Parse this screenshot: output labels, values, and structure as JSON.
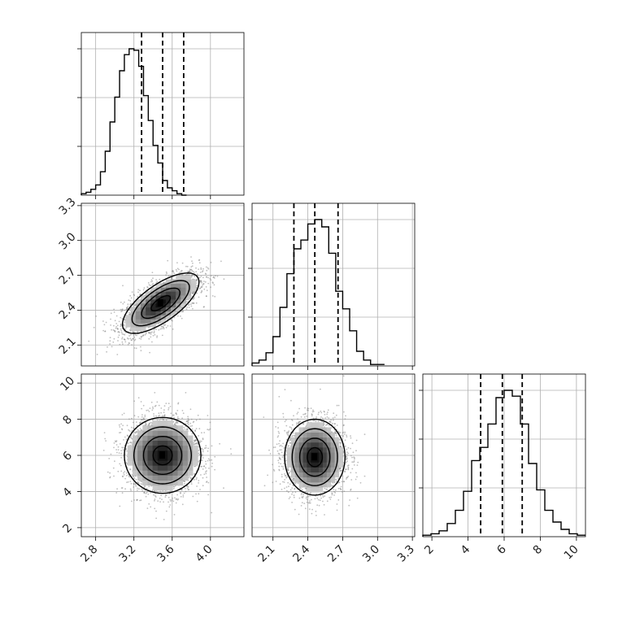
{
  "chart_data": [
    {
      "type": "histogram",
      "panel": "p1-marginal",
      "variable": "p1",
      "bin_edges_start": 2.65,
      "bin_width": 0.05,
      "relative_counts": [
        0.01,
        0.02,
        0.04,
        0.07,
        0.16,
        0.3,
        0.5,
        0.67,
        0.85,
        0.96,
        1.0,
        0.99,
        0.88,
        0.68,
        0.51,
        0.34,
        0.22,
        0.1,
        0.05,
        0.03,
        0.01,
        0.0
      ],
      "quantile_lines": [
        3.28,
        3.5,
        3.72
      ],
      "xlim": [
        2.65,
        4.35
      ]
    },
    {
      "type": "histogram",
      "panel": "p2-marginal",
      "variable": "p2",
      "bin_edges_start": 1.92,
      "bin_width": 0.06,
      "relative_counts": [
        0.02,
        0.04,
        0.09,
        0.2,
        0.4,
        0.63,
        0.8,
        0.86,
        0.97,
        1.0,
        0.95,
        0.77,
        0.51,
        0.39,
        0.24,
        0.1,
        0.04,
        0.01,
        0.01
      ],
      "quantile_lines": [
        2.28,
        2.46,
        2.66
      ],
      "xlim": [
        1.92,
        3.32
      ]
    },
    {
      "type": "histogram",
      "panel": "p3-marginal",
      "variable": "p3",
      "bin_edges_start": 1.5,
      "bin_width": 0.45,
      "relative_counts": [
        0.01,
        0.02,
        0.04,
        0.09,
        0.18,
        0.31,
        0.52,
        0.61,
        0.77,
        0.95,
        1.0,
        0.96,
        0.77,
        0.5,
        0.32,
        0.18,
        0.1,
        0.05,
        0.02,
        0.01
      ],
      "quantile_lines": [
        4.7,
        5.9,
        7.0
      ],
      "xlim": [
        1.5,
        10.5
      ]
    },
    {
      "type": "scatter-density",
      "panel": "p1-vs-p2",
      "x_variable": "p1",
      "y_variable": "p2",
      "center": [
        3.48,
        2.46
      ],
      "spread": [
        0.2,
        0.13
      ],
      "correlation": 0.7,
      "contour_sigma_levels": [
        0.5,
        1.0,
        1.5,
        2.0
      ]
    },
    {
      "type": "scatter-density",
      "panel": "p1-vs-p3",
      "x_variable": "p1",
      "y_variable": "p3",
      "center": [
        3.5,
        6.0
      ],
      "spread": [
        0.2,
        1.05
      ],
      "correlation": 0.0,
      "contour_sigma_levels": [
        0.5,
        1.0,
        1.5,
        2.0
      ]
    },
    {
      "type": "scatter-density",
      "panel": "p2-vs-p3",
      "x_variable": "p2",
      "y_variable": "p3",
      "center": [
        2.46,
        5.9
      ],
      "spread": [
        0.13,
        1.05
      ],
      "correlation": 0.0,
      "contour_sigma_levels": [
        0.5,
        1.0,
        1.5,
        2.0
      ]
    }
  ],
  "axes": {
    "p1": {
      "range": [
        2.65,
        4.35
      ],
      "ticks": [
        2.8,
        3.2,
        3.6,
        4.0
      ],
      "tick_labels": [
        "2.8",
        "3.2",
        "3.6",
        "4.0"
      ]
    },
    "p2": {
      "range": [
        1.92,
        3.32
      ],
      "ticks": [
        2.1,
        2.4,
        2.7,
        3.0,
        3.3
      ],
      "tick_labels": [
        "2.1",
        "2.4",
        "2.7",
        "3.0",
        "3.3"
      ]
    },
    "p3": {
      "range": [
        1.5,
        10.5
      ],
      "ticks": [
        2,
        4,
        6,
        8,
        10
      ],
      "tick_labels": [
        "2",
        "4",
        "6",
        "8",
        "10"
      ]
    }
  },
  "style": {
    "line_color": "#000000",
    "grid_color": "#b0b0b0",
    "point_color": "#808080"
  },
  "grid": true
}
